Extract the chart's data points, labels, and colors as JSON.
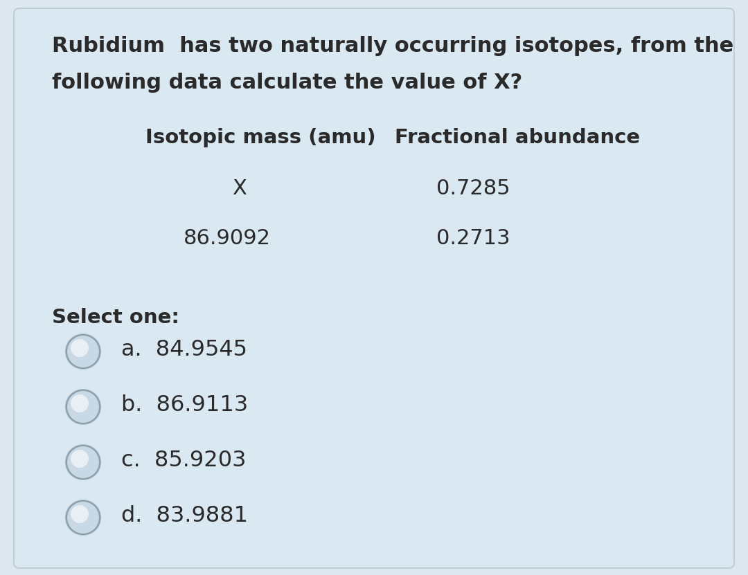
{
  "title_line1": "Rubidium  has two naturally occurring isotopes, from the",
  "title_line2": "following data calculate the value of X?",
  "col1_header": "Isotopic mass (amu)",
  "col2_header": "Fractional abundance",
  "row1_col1": "X",
  "row1_col2": "0.7285",
  "row2_col1": "86.9092",
  "row2_col2": "0.2713",
  "select_label": "Select one:",
  "options": [
    "a.  84.9545",
    "b.  86.9113",
    "c.  85.9203",
    "d.  83.9881"
  ],
  "bg_outer": "#dde8f0",
  "bg_inner": "#dae8f2",
  "card_edge": "#c0cdd6",
  "text_color": "#2a2a2a",
  "radio_fill": "#c8d8e4",
  "radio_edge": "#9aacb8",
  "radio_highlight": "#e8f0f5"
}
